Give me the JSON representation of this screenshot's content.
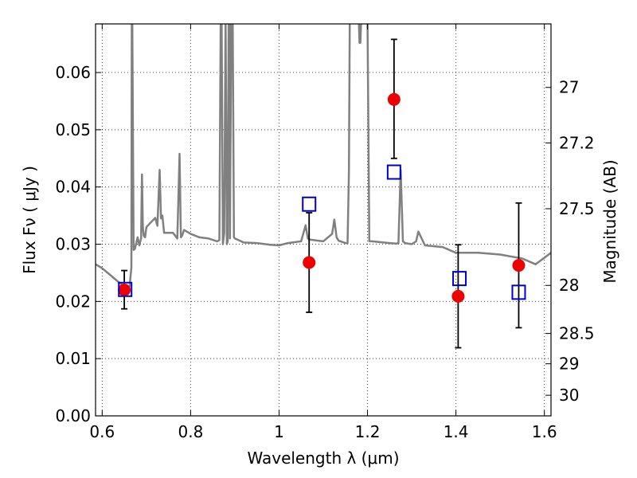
{
  "chart_data": {
    "type": "scatter",
    "title": "",
    "xlabel": "Wavelength  λ (μm)",
    "ylabel": "Flux  Fν  ( μJy )",
    "ylabel_right": "Magnitude (AB)",
    "xlim": [
      0.585,
      1.615
    ],
    "ylim": [
      0.0,
      0.0685
    ],
    "grid": true,
    "x_ticks": [
      0.6,
      0.8,
      1.0,
      1.2,
      1.4,
      1.6
    ],
    "x_tick_labels": [
      "0.6",
      "0.8",
      "1",
      "1.2",
      "1.4",
      "1.6"
    ],
    "y_ticks": [
      0.0,
      0.01,
      0.02,
      0.03,
      0.04,
      0.05,
      0.06
    ],
    "y_tick_labels": [
      "0.00",
      "0.01",
      "0.02",
      "0.03",
      "0.04",
      "0.05",
      "0.06"
    ],
    "right_axis_ticks": [
      {
        "label": "27",
        "flux": 0.0574
      },
      {
        "label": "27.2",
        "flux": 0.0477
      },
      {
        "label": "27.5",
        "flux": 0.0362
      },
      {
        "label": "28",
        "flux": 0.0228
      },
      {
        "label": "28.5",
        "flux": 0.0144
      },
      {
        "label": "29",
        "flux": 0.0091
      },
      {
        "label": "30",
        "flux": 0.0036
      }
    ],
    "series": [
      {
        "kind": "line",
        "color": "#808080",
        "x": [
          0.585,
          0.6,
          0.62,
          0.64,
          0.655,
          0.662,
          0.666,
          0.667,
          0.668,
          0.671,
          0.674,
          0.68,
          0.684,
          0.688,
          0.69,
          0.692,
          0.694,
          0.697,
          0.7,
          0.71,
          0.72,
          0.725,
          0.73,
          0.733,
          0.736,
          0.74,
          0.76,
          0.77,
          0.775,
          0.778,
          0.781,
          0.785,
          0.8,
          0.82,
          0.84,
          0.86,
          0.865,
          0.868,
          0.87,
          0.873,
          0.876,
          0.879,
          0.882,
          0.884,
          0.886,
          0.888,
          0.889,
          0.892,
          0.895,
          0.898,
          0.9,
          0.92,
          0.95,
          0.98,
          1.0,
          1.02,
          1.05,
          1.06,
          1.065,
          1.07,
          1.09,
          1.1,
          1.12,
          1.125,
          1.13,
          1.135,
          1.15,
          1.155,
          1.158,
          1.16,
          1.162,
          1.18,
          1.182,
          1.184,
          1.186,
          1.2,
          1.204,
          1.207,
          1.21,
          1.25,
          1.265,
          1.27,
          1.275,
          1.28,
          1.285,
          1.3,
          1.31,
          1.315,
          1.33,
          1.37,
          1.4,
          1.45,
          1.5,
          1.55,
          1.58,
          1.615
        ],
        "y": [
          0.0265,
          0.0258,
          0.0245,
          0.0232,
          0.0226,
          0.0226,
          0.026,
          0.07,
          0.07,
          0.029,
          0.0292,
          0.0312,
          0.0298,
          0.031,
          0.0422,
          0.033,
          0.0315,
          0.0312,
          0.033,
          0.0338,
          0.0346,
          0.0332,
          0.043,
          0.0345,
          0.035,
          0.032,
          0.032,
          0.031,
          0.0458,
          0.0312,
          0.0315,
          0.0325,
          0.0318,
          0.0312,
          0.031,
          0.0305,
          0.0307,
          0.07,
          0.07,
          0.03,
          0.032,
          0.07,
          0.03,
          0.0305,
          0.07,
          0.07,
          0.031,
          0.07,
          0.07,
          0.0312,
          0.031,
          0.0303,
          0.0302,
          0.0299,
          0.0298,
          0.0302,
          0.0305,
          0.0333,
          0.031,
          0.0308,
          0.0306,
          0.0305,
          0.0318,
          0.0343,
          0.0312,
          0.0306,
          0.0302,
          0.0302,
          0.0425,
          0.07,
          0.07,
          0.07,
          0.0652,
          0.0652,
          0.07,
          0.07,
          0.0305,
          0.0305,
          0.0305,
          0.0302,
          0.0301,
          0.0302,
          0.043,
          0.0305,
          0.0302,
          0.03,
          0.0305,
          0.0322,
          0.0298,
          0.0295,
          0.0285,
          0.0285,
          0.0282,
          0.0275,
          0.0265,
          0.0285
        ]
      },
      {
        "kind": "points",
        "marker": "circle",
        "color": "#ee0000",
        "x": [
          0.65,
          1.068,
          1.26,
          1.405,
          1.542
        ],
        "y": [
          0.022,
          0.0268,
          0.0553,
          0.0209,
          0.0263
        ],
        "err_low": [
          0.0033,
          0.0087,
          0.0103,
          0.009,
          0.0109
        ],
        "err_high": [
          0.0034,
          0.0087,
          0.0105,
          0.009,
          0.0109
        ]
      },
      {
        "kind": "points",
        "marker": "open-square",
        "color": "#0000cc",
        "x": [
          0.652,
          1.068,
          1.26,
          1.408,
          1.542
        ],
        "y": [
          0.0221,
          0.037,
          0.0426,
          0.024,
          0.0216
        ]
      }
    ]
  }
}
